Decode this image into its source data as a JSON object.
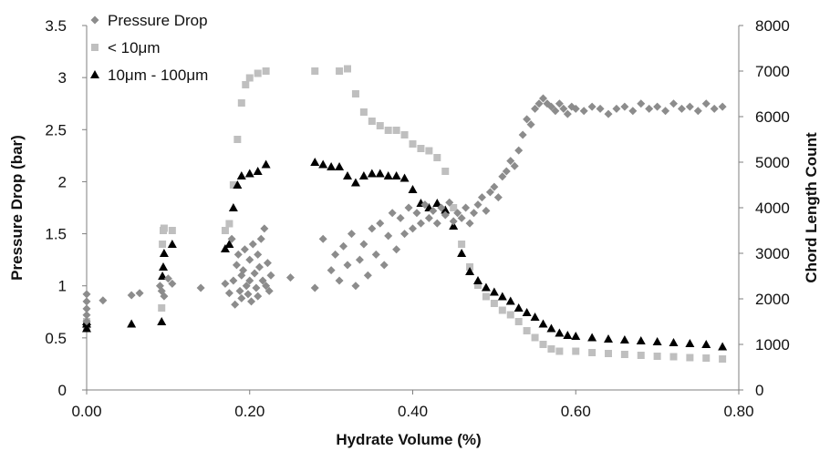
{
  "chart_data": {
    "type": "scatter",
    "title": "",
    "xlabel": "Hydrate Volume (%)",
    "ylabel_left": "Pressure Drop (bar)",
    "ylabel_right": "Chord Length Count",
    "xlim": [
      0,
      0.8
    ],
    "ylim_left": [
      0,
      3.5
    ],
    "ylim_right": [
      0,
      8000
    ],
    "x_ticks": [
      "0.00",
      "0.20",
      "0.40",
      "0.60",
      "0.80"
    ],
    "y_left_ticks": [
      "0",
      "0.5",
      "1",
      "1.5",
      "2",
      "2.5",
      "3",
      "3.5"
    ],
    "y_right_ticks": [
      "0",
      "1000",
      "2000",
      "3000",
      "4000",
      "5000",
      "6000",
      "7000",
      "8000"
    ],
    "grid": false,
    "legend_position": "top-left",
    "series": [
      {
        "name": "Pressure Drop",
        "axis": "left",
        "marker": "diamond",
        "color": "#8c8c8c",
        "points": [
          [
            0.0,
            0.92
          ],
          [
            0.0,
            0.85
          ],
          [
            0.0,
            0.78
          ],
          [
            0.0,
            0.72
          ],
          [
            0.0,
            0.66
          ],
          [
            0.02,
            0.86
          ],
          [
            0.055,
            0.91
          ],
          [
            0.065,
            0.93
          ],
          [
            0.09,
            1.0
          ],
          [
            0.092,
            0.95
          ],
          [
            0.095,
            0.9
          ],
          [
            0.1,
            1.07
          ],
          [
            0.105,
            1.02
          ],
          [
            0.14,
            0.98
          ],
          [
            0.17,
            1.02
          ],
          [
            0.175,
            0.93
          ],
          [
            0.178,
            1.45
          ],
          [
            0.18,
            1.05
          ],
          [
            0.182,
            0.82
          ],
          [
            0.184,
            1.2
          ],
          [
            0.186,
            1.3
          ],
          [
            0.188,
            0.95
          ],
          [
            0.19,
            1.1
          ],
          [
            0.19,
            0.88
          ],
          [
            0.192,
            1.15
          ],
          [
            0.194,
            1.35
          ],
          [
            0.196,
            1.0
          ],
          [
            0.198,
            0.92
          ],
          [
            0.2,
            1.25
          ],
          [
            0.2,
            1.05
          ],
          [
            0.202,
            0.85
          ],
          [
            0.204,
            1.4
          ],
          [
            0.206,
            1.12
          ],
          [
            0.208,
            0.98
          ],
          [
            0.21,
            1.3
          ],
          [
            0.21,
            0.9
          ],
          [
            0.212,
            1.18
          ],
          [
            0.214,
            1.45
          ],
          [
            0.216,
            1.05
          ],
          [
            0.218,
            1.55
          ],
          [
            0.22,
            1.0
          ],
          [
            0.222,
            1.22
          ],
          [
            0.224,
            0.95
          ],
          [
            0.226,
            1.1
          ],
          [
            0.25,
            1.08
          ],
          [
            0.28,
            0.98
          ],
          [
            0.29,
            1.45
          ],
          [
            0.3,
            1.15
          ],
          [
            0.305,
            1.3
          ],
          [
            0.31,
            1.05
          ],
          [
            0.315,
            1.38
          ],
          [
            0.32,
            1.2
          ],
          [
            0.325,
            1.5
          ],
          [
            0.33,
            1.0
          ],
          [
            0.335,
            1.25
          ],
          [
            0.34,
            1.4
          ],
          [
            0.345,
            1.1
          ],
          [
            0.35,
            1.55
          ],
          [
            0.355,
            1.3
          ],
          [
            0.36,
            1.6
          ],
          [
            0.365,
            1.2
          ],
          [
            0.37,
            1.48
          ],
          [
            0.375,
            1.7
          ],
          [
            0.38,
            1.35
          ],
          [
            0.385,
            1.65
          ],
          [
            0.39,
            1.5
          ],
          [
            0.395,
            1.75
          ],
          [
            0.4,
            1.55
          ],
          [
            0.405,
            1.7
          ],
          [
            0.41,
            1.6
          ],
          [
            0.415,
            1.78
          ],
          [
            0.42,
            1.65
          ],
          [
            0.425,
            1.72
          ],
          [
            0.43,
            1.6
          ],
          [
            0.435,
            1.75
          ],
          [
            0.44,
            1.68
          ],
          [
            0.445,
            1.8
          ],
          [
            0.45,
            1.62
          ],
          [
            0.455,
            1.7
          ],
          [
            0.46,
            1.65
          ],
          [
            0.465,
            1.75
          ],
          [
            0.47,
            1.6
          ],
          [
            0.475,
            1.7
          ],
          [
            0.48,
            1.78
          ],
          [
            0.485,
            1.85
          ],
          [
            0.49,
            1.72
          ],
          [
            0.495,
            1.9
          ],
          [
            0.5,
            1.95
          ],
          [
            0.505,
            1.85
          ],
          [
            0.51,
            2.05
          ],
          [
            0.515,
            2.1
          ],
          [
            0.52,
            2.2
          ],
          [
            0.525,
            2.15
          ],
          [
            0.53,
            2.3
          ],
          [
            0.535,
            2.45
          ],
          [
            0.54,
            2.6
          ],
          [
            0.545,
            2.55
          ],
          [
            0.55,
            2.7
          ],
          [
            0.555,
            2.75
          ],
          [
            0.56,
            2.8
          ],
          [
            0.565,
            2.75
          ],
          [
            0.57,
            2.72
          ],
          [
            0.575,
            2.68
          ],
          [
            0.58,
            2.75
          ],
          [
            0.585,
            2.7
          ],
          [
            0.59,
            2.65
          ],
          [
            0.595,
            2.72
          ],
          [
            0.6,
            2.7
          ],
          [
            0.61,
            2.68
          ],
          [
            0.62,
            2.72
          ],
          [
            0.63,
            2.7
          ],
          [
            0.64,
            2.65
          ],
          [
            0.65,
            2.7
          ],
          [
            0.66,
            2.72
          ],
          [
            0.67,
            2.68
          ],
          [
            0.68,
            2.75
          ],
          [
            0.69,
            2.7
          ],
          [
            0.7,
            2.72
          ],
          [
            0.71,
            2.68
          ],
          [
            0.72,
            2.75
          ],
          [
            0.73,
            2.7
          ],
          [
            0.74,
            2.72
          ],
          [
            0.75,
            2.68
          ],
          [
            0.76,
            2.75
          ],
          [
            0.77,
            2.7
          ],
          [
            0.78,
            2.72
          ]
        ]
      },
      {
        "name": "< 10μm",
        "axis": "right",
        "marker": "square",
        "color": "#bfbfbf",
        "points": [
          [
            0.0,
            1400
          ],
          [
            0.0,
            1500
          ],
          [
            0.092,
            1800
          ],
          [
            0.093,
            3200
          ],
          [
            0.094,
            3500
          ],
          [
            0.095,
            3550
          ],
          [
            0.105,
            3500
          ],
          [
            0.17,
            3500
          ],
          [
            0.175,
            3650
          ],
          [
            0.18,
            4500
          ],
          [
            0.185,
            5500
          ],
          [
            0.19,
            6300
          ],
          [
            0.195,
            6700
          ],
          [
            0.2,
            6850
          ],
          [
            0.21,
            6950
          ],
          [
            0.22,
            7000
          ],
          [
            0.28,
            7000
          ],
          [
            0.31,
            7000
          ],
          [
            0.32,
            7050
          ],
          [
            0.33,
            6500
          ],
          [
            0.34,
            6100
          ],
          [
            0.35,
            5900
          ],
          [
            0.36,
            5800
          ],
          [
            0.37,
            5700
          ],
          [
            0.38,
            5700
          ],
          [
            0.39,
            5600
          ],
          [
            0.4,
            5400
          ],
          [
            0.41,
            5300
          ],
          [
            0.42,
            5250
          ],
          [
            0.43,
            5100
          ],
          [
            0.44,
            4800
          ],
          [
            0.45,
            4000
          ],
          [
            0.46,
            3200
          ],
          [
            0.47,
            2700
          ],
          [
            0.48,
            2300
          ],
          [
            0.49,
            2050
          ],
          [
            0.5,
            1900
          ],
          [
            0.51,
            1750
          ],
          [
            0.52,
            1650
          ],
          [
            0.53,
            1500
          ],
          [
            0.54,
            1300
          ],
          [
            0.55,
            1150
          ],
          [
            0.56,
            1000
          ],
          [
            0.57,
            900
          ],
          [
            0.58,
            850
          ],
          [
            0.6,
            850
          ],
          [
            0.62,
            820
          ],
          [
            0.64,
            800
          ],
          [
            0.66,
            780
          ],
          [
            0.68,
            760
          ],
          [
            0.7,
            740
          ],
          [
            0.72,
            730
          ],
          [
            0.74,
            710
          ],
          [
            0.76,
            700
          ],
          [
            0.78,
            680
          ]
        ]
      },
      {
        "name": "10μm - 100μm",
        "axis": "right",
        "marker": "triangle",
        "color": "#000000",
        "points": [
          [
            0.0,
            1350
          ],
          [
            0.0,
            1450
          ],
          [
            0.0,
            1500
          ],
          [
            0.055,
            1450
          ],
          [
            0.092,
            1500
          ],
          [
            0.093,
            2500
          ],
          [
            0.094,
            2700
          ],
          [
            0.095,
            3000
          ],
          [
            0.105,
            3200
          ],
          [
            0.17,
            3100
          ],
          [
            0.175,
            3200
          ],
          [
            0.18,
            4000
          ],
          [
            0.185,
            4500
          ],
          [
            0.19,
            4700
          ],
          [
            0.2,
            4750
          ],
          [
            0.21,
            4800
          ],
          [
            0.22,
            4950
          ],
          [
            0.28,
            5000
          ],
          [
            0.29,
            4950
          ],
          [
            0.3,
            4900
          ],
          [
            0.31,
            4900
          ],
          [
            0.32,
            4700
          ],
          [
            0.33,
            4550
          ],
          [
            0.34,
            4700
          ],
          [
            0.35,
            4750
          ],
          [
            0.36,
            4750
          ],
          [
            0.37,
            4700
          ],
          [
            0.38,
            4700
          ],
          [
            0.39,
            4650
          ],
          [
            0.4,
            4400
          ],
          [
            0.41,
            4100
          ],
          [
            0.42,
            4000
          ],
          [
            0.43,
            4100
          ],
          [
            0.44,
            3950
          ],
          [
            0.45,
            3600
          ],
          [
            0.46,
            3000
          ],
          [
            0.47,
            2600
          ],
          [
            0.48,
            2400
          ],
          [
            0.49,
            2250
          ],
          [
            0.5,
            2150
          ],
          [
            0.51,
            2050
          ],
          [
            0.52,
            1950
          ],
          [
            0.53,
            1800
          ],
          [
            0.54,
            1700
          ],
          [
            0.55,
            1600
          ],
          [
            0.56,
            1450
          ],
          [
            0.57,
            1350
          ],
          [
            0.58,
            1250
          ],
          [
            0.59,
            1200
          ],
          [
            0.6,
            1180
          ],
          [
            0.62,
            1150
          ],
          [
            0.64,
            1120
          ],
          [
            0.66,
            1100
          ],
          [
            0.68,
            1080
          ],
          [
            0.7,
            1060
          ],
          [
            0.72,
            1040
          ],
          [
            0.74,
            1020
          ],
          [
            0.76,
            1000
          ],
          [
            0.78,
            950
          ]
        ]
      }
    ]
  }
}
